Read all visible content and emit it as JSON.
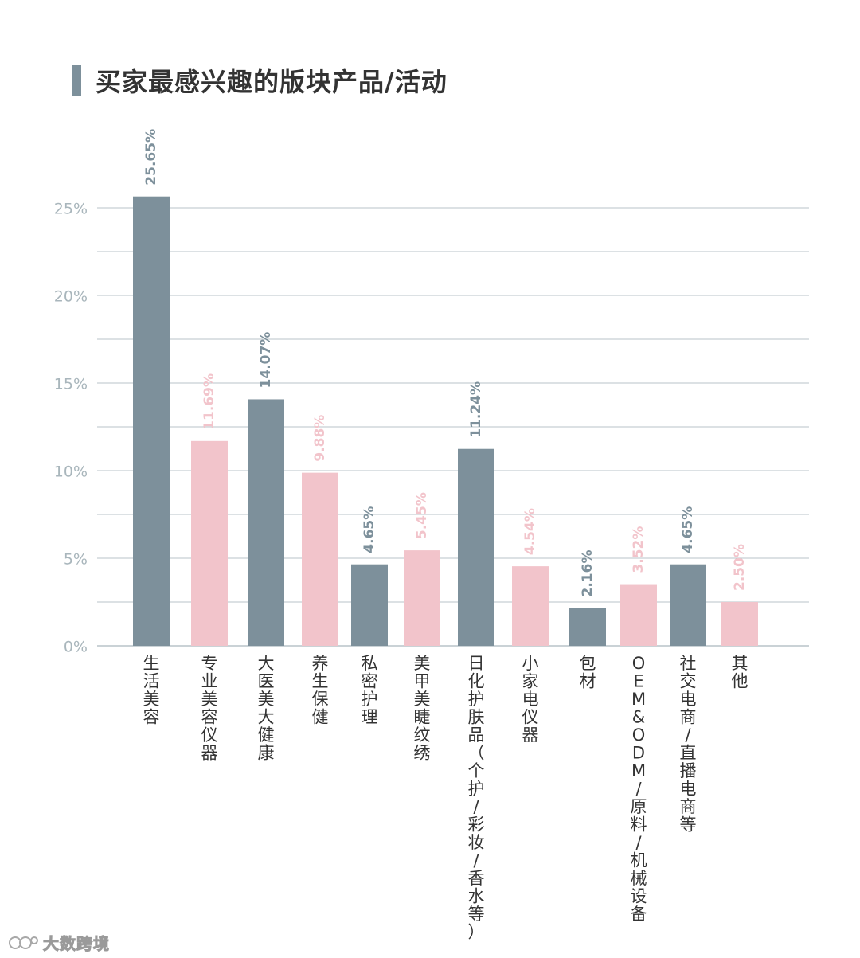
{
  "title": "买家最感兴趣的版块产品/活动",
  "watermark": "大数跨境",
  "colors": {
    "dark": "#7d909b",
    "pink": "#f2c4cb",
    "grid": "#b8c3c8",
    "tick": "#a9b6bc",
    "label": "#333333"
  },
  "chart_data": {
    "type": "bar",
    "ylim": [
      0,
      25
    ],
    "yticks": [
      "0%",
      "5%",
      "10%",
      "15%",
      "20%",
      "25%"
    ],
    "ytick_values": [
      0,
      5,
      10,
      15,
      20,
      25
    ],
    "grid": true,
    "categories": [
      "生活美容",
      "专业美容仪器",
      "大医美大健康",
      "养生保健",
      "私密护理",
      "美甲美睫纹绣",
      "日化护肤品（个护/彩妆/香水等）",
      "小家电仪器",
      "包材",
      "OEM&ODM/原料/机械设备",
      "社交电商/直播电商等",
      "其他"
    ],
    "values": [
      25.65,
      11.69,
      14.07,
      9.88,
      4.65,
      5.45,
      11.24,
      4.54,
      2.16,
      3.52,
      4.65,
      2.5
    ],
    "value_labels": [
      "25.65%",
      "11.69%",
      "14.07%",
      "9.88%",
      "4.65%",
      "5.45%",
      "11.24%",
      "4.54%",
      "2.16%",
      "3.52%",
      "4.65%",
      "2.50%"
    ],
    "bar_colors": [
      "dark",
      "pink",
      "dark",
      "pink",
      "dark",
      "pink",
      "dark",
      "pink",
      "dark",
      "pink",
      "dark",
      "pink"
    ]
  }
}
